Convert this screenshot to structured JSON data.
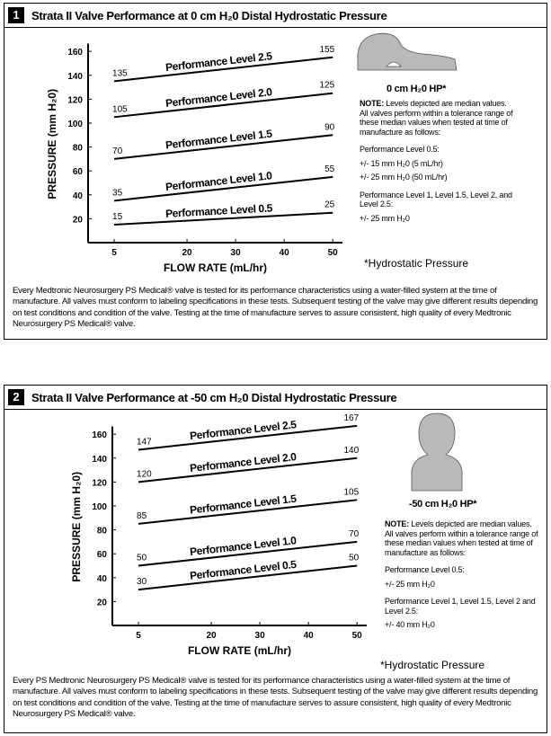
{
  "chart_data": [
    {
      "type": "line",
      "ylabel": "PRESSURE (mm H₂0)",
      "xlabel": "FLOW RATE (mL/hr)",
      "x": [
        5,
        50
      ],
      "xlim": [
        0,
        52
      ],
      "xticks": [
        5,
        20,
        30,
        40,
        50
      ],
      "ylim": [
        0,
        165
      ],
      "yticks": [
        20,
        40,
        60,
        80,
        100,
        120,
        140,
        160
      ],
      "color": "#000000",
      "series": [
        {
          "name": "Performance Level 2.5",
          "values": [
            135,
            155
          ]
        },
        {
          "name": "Performance Level 2.0",
          "values": [
            105,
            125
          ]
        },
        {
          "name": "Performance Level 1.5",
          "values": [
            70,
            90
          ]
        },
        {
          "name": "Performance Level 1.0",
          "values": [
            35,
            55
          ]
        },
        {
          "name": "Performance Level 0.5",
          "values": [
            15,
            25
          ]
        }
      ]
    },
    {
      "type": "line",
      "ylabel": "PRESSURE (mm H₂0)",
      "xlabel": "FLOW RATE (mL/hr)",
      "x": [
        5,
        50
      ],
      "xlim": [
        0,
        52
      ],
      "xticks": [
        5,
        20,
        30,
        40,
        50
      ],
      "ylim": [
        0,
        165
      ],
      "yticks": [
        20,
        40,
        60,
        80,
        100,
        120,
        140,
        160
      ],
      "color": "#000000",
      "series": [
        {
          "name": "Performance Level 2.5",
          "values": [
            147,
            167
          ]
        },
        {
          "name": "Performance Level 2.0",
          "values": [
            120,
            140
          ]
        },
        {
          "name": "Performance Level 1.5",
          "values": [
            85,
            105
          ]
        },
        {
          "name": "Performance Level 1.0",
          "values": [
            50,
            70
          ]
        },
        {
          "name": "Performance Level 0.5",
          "values": [
            30,
            50
          ]
        }
      ]
    }
  ],
  "panels": [
    {
      "number": "1",
      "title": "Strata II Valve Performance at 0 cm H₂0 Distal Hydrostatic Pressure",
      "hp_label": "0 cm H₂0 HP*",
      "note_label": "NOTE:",
      "note_text": "Levels depicted are median values. All valves perform within a tolerance range of these median values when tested at time of manufacture as follows:",
      "tolerances": [
        {
          "heading": "Performance Level 0.5:",
          "lines": [
            "+/- 15 mm H₂0 (5 mL/hr)",
            "+/- 25 mm H₂0 (50 mL/hr)"
          ]
        },
        {
          "heading": "Performance Level 1, Level 1.5, Level 2, and Level 2.5:",
          "lines": [
            "+/- 25 mm H₂0"
          ]
        }
      ],
      "footnote": "*Hydrostatic Pressure",
      "paragraph": "Every Medtronic Neurosurgery PS Medical® valve is tested for its performance characteristics using a water-filled system at the time of manufacture. All valves must conform to labeling specifications in these tests. Subsequent testing of the valve may give different results depending on test conditions and condition of the valve. Testing at the time of manufacture serves to assure consistent, high quality of every Medtronic Neurosurgery PS Medical® valve."
    },
    {
      "number": "2",
      "title": "Strata II Valve Performance at -50 cm H₂0 Distal Hydrostatic Pressure",
      "hp_label": "-50 cm H₂0 HP*",
      "note_label": "NOTE:",
      "note_text": "Levels depicted are median values. All valves perform within a tolerance range of these median values when tested at time of manufacture as follows:",
      "tolerances": [
        {
          "heading": "Performance Level 0.5:",
          "lines": [
            "+/- 25 mm H₂0"
          ]
        },
        {
          "heading": "Performance Level 1, Level 1.5, Level 2 and Level 2.5:",
          "lines": [
            "+/- 40 mm H₂0"
          ]
        }
      ],
      "footnote": "*Hydrostatic Pressure",
      "paragraph": "Every PS Medtronic Neurosurgery PS Medical® valve is tested for its performance characteristics using a water-filled system at the time of manufacture. All valves must conform to labeling specifications in these tests. Subsequent testing of the valve may give different results depending on test conditions and condition of the valve. Testing at the time of manufacture serves to assure consistent, high quality of every Medtronic Neurosurgery PS Medical® valve."
    }
  ]
}
